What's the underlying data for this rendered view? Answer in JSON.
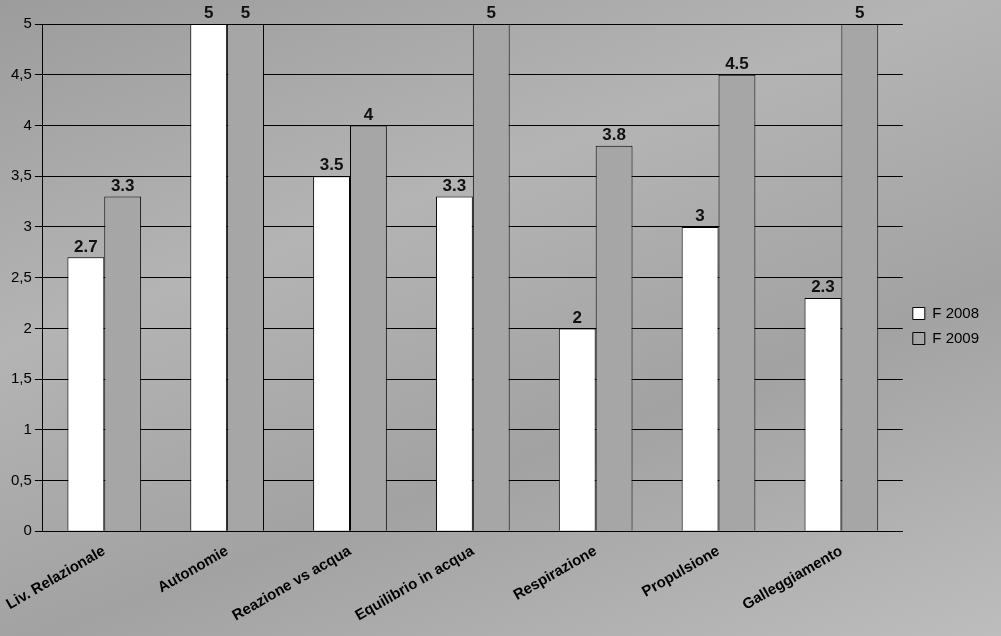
{
  "chart_data": {
    "type": "bar",
    "categories": [
      "Liv. Relazionale",
      "Autonomie",
      "Reazione vs acqua",
      "Equilibrio in acqua",
      "Respirazione",
      "Propulsione",
      "Galleggiamento"
    ],
    "series": [
      {
        "name": "F 2008",
        "color": "#ffffff",
        "values": [
          2.7,
          5,
          3.5,
          3.3,
          2,
          3,
          2.3
        ]
      },
      {
        "name": "F 2009",
        "color": "#a6a6a6",
        "values": [
          3.3,
          5,
          4,
          5,
          3.8,
          4.5,
          5
        ]
      }
    ],
    "ylim": [
      0,
      5
    ],
    "yticks": [
      0,
      {
        "value": 0.5,
        "label": "0,5"
      },
      1,
      {
        "value": 1.5,
        "label": "1,5"
      },
      2,
      {
        "value": 2.5,
        "label": "2,5"
      },
      3,
      {
        "value": 3.5,
        "label": "3,5"
      },
      4,
      {
        "value": 4.5,
        "label": "4,5"
      },
      5
    ],
    "grid": true,
    "legend": "right",
    "data_labels": true
  }
}
